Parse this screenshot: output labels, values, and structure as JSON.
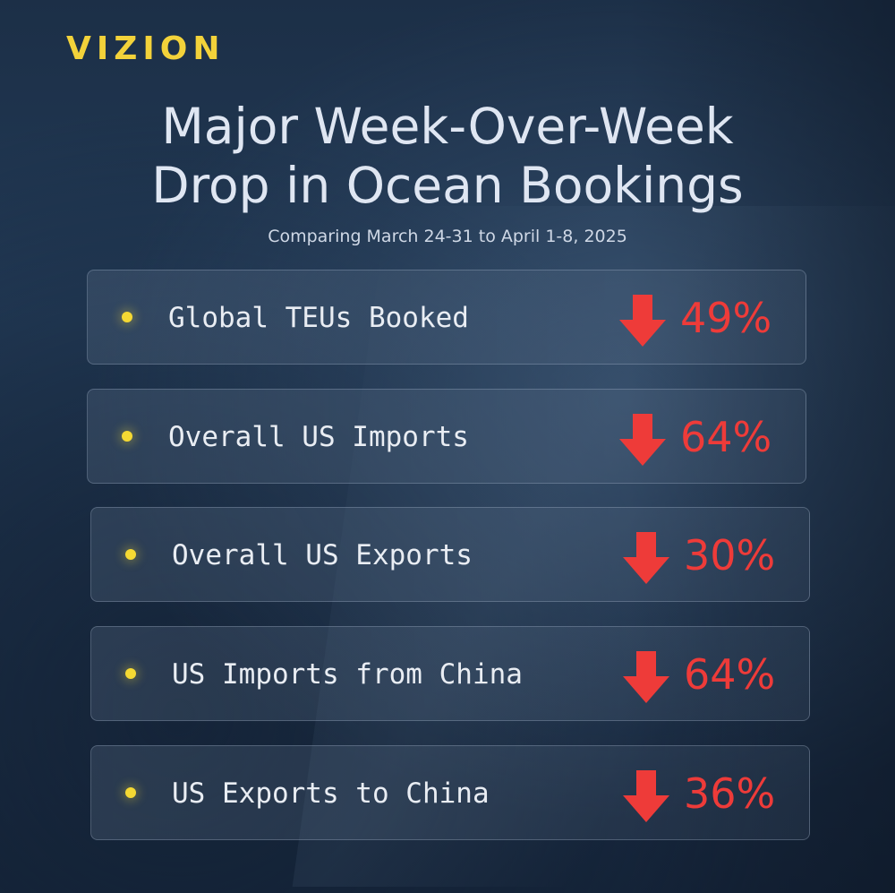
{
  "brand": "VIZION",
  "title_lines": [
    "Major Week-Over-Week",
    "Drop in Ocean Bookings"
  ],
  "subtitle": "Comparing March 24-31 to April 1-8, 2025",
  "colors": {
    "brand": "#f3d23a",
    "drop": "#ee3b39",
    "bullet": "#f5d933"
  },
  "stats": [
    {
      "label": "Global TEUs Booked",
      "value": "49%",
      "icon": "arrow-down-icon"
    },
    {
      "label": "Overall US Imports",
      "value": "64%",
      "icon": "arrow-down-icon"
    },
    {
      "label": "Overall US Exports",
      "value": "30%",
      "icon": "arrow-down-icon"
    },
    {
      "label": "US Imports from China",
      "value": "64%",
      "icon": "arrow-down-icon"
    },
    {
      "label": "US Exports to China",
      "value": "36%",
      "icon": "arrow-down-icon"
    }
  ]
}
